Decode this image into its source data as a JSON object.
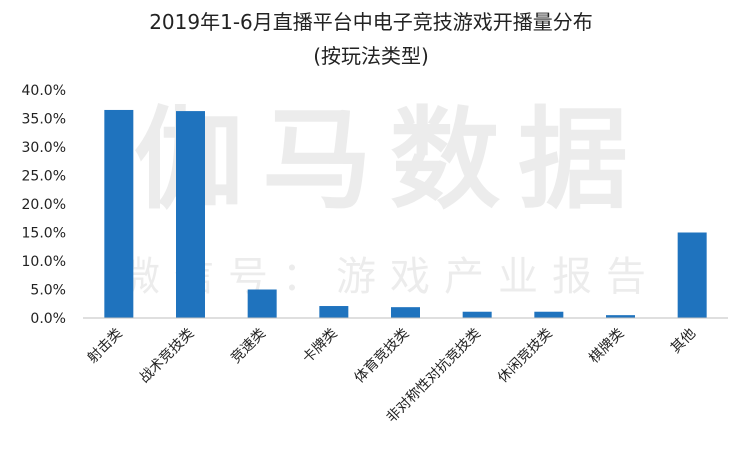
{
  "chart_data": {
    "type": "bar",
    "title": "2019年1-6月直播平台中电子竞技游戏开播量分布",
    "subtitle": "(按玩法类型)",
    "categories": [
      "射击类",
      "战术竞技类",
      "竞速类",
      "卡牌类",
      "体育竞技类",
      "非对称性对抗竞技类",
      "休闲竞技类",
      "棋牌类",
      "其他"
    ],
    "values": [
      36.5,
      36.3,
      5.0,
      2.1,
      1.9,
      1.1,
      1.1,
      0.5,
      15.0
    ],
    "ylim": [
      0,
      40
    ],
    "yticks": [
      "40.0%",
      "35.0%",
      "30.0%",
      "25.0%",
      "20.0%",
      "15.0%",
      "10.0%",
      "5.0%",
      "0.0%"
    ],
    "bar_color": "#1F73BE",
    "grid": false,
    "legend": "none"
  },
  "watermark": {
    "main": "伽马数据",
    "sub": "微信号：游戏产业报告"
  }
}
